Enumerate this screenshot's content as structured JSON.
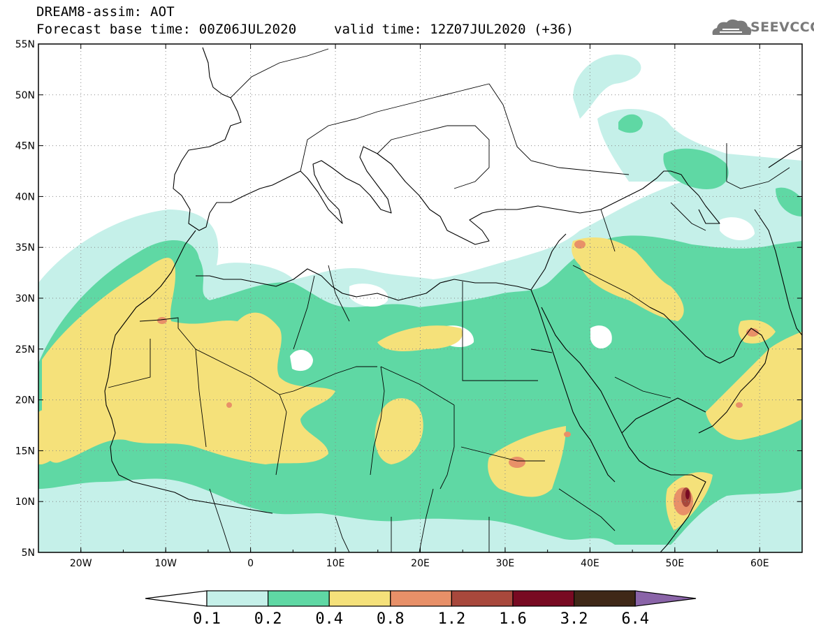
{
  "header": {
    "title": "DREAM8-assim: AOT",
    "base_time_label": "Forecast base time: 00Z06JUL2020",
    "valid_time_label": "valid time: 12Z07JUL2020 (+36)"
  },
  "logo": {
    "text": "SEEVCCC",
    "icon": "cloud-logo-icon"
  },
  "map": {
    "lon_range": [
      -25,
      65
    ],
    "lat_range": [
      5,
      55
    ],
    "lon_ticks": [
      {
        "value": -20,
        "label": "20W"
      },
      {
        "value": -10,
        "label": "10W"
      },
      {
        "value": 0,
        "label": "0"
      },
      {
        "value": 10,
        "label": "10E"
      },
      {
        "value": 20,
        "label": "20E"
      },
      {
        "value": 30,
        "label": "30E"
      },
      {
        "value": 40,
        "label": "40E"
      },
      {
        "value": 50,
        "label": "50E"
      },
      {
        "value": 60,
        "label": "60E"
      }
    ],
    "lat_ticks": [
      {
        "value": 5,
        "label": "5N"
      },
      {
        "value": 10,
        "label": "10N"
      },
      {
        "value": 15,
        "label": "15N"
      },
      {
        "value": 20,
        "label": "20N"
      },
      {
        "value": 25,
        "label": "25N"
      },
      {
        "value": 30,
        "label": "30N"
      },
      {
        "value": 35,
        "label": "35N"
      },
      {
        "value": 40,
        "label": "40N"
      },
      {
        "value": 45,
        "label": "45N"
      },
      {
        "value": 50,
        "label": "50N"
      },
      {
        "value": 55,
        "label": "55N"
      }
    ],
    "gridlines": true
  },
  "colorbar": {
    "labels": [
      "0.1",
      "0.2",
      "0.4",
      "0.8",
      "1.2",
      "1.6",
      "3.2",
      "6.4"
    ],
    "colors": [
      "#ffffff",
      "#c5f0e9",
      "#5fd8a4",
      "#f5e17a",
      "#e89068",
      "#a8483c",
      "#780a22",
      "#3f2817",
      "#8a64a8"
    ]
  }
}
